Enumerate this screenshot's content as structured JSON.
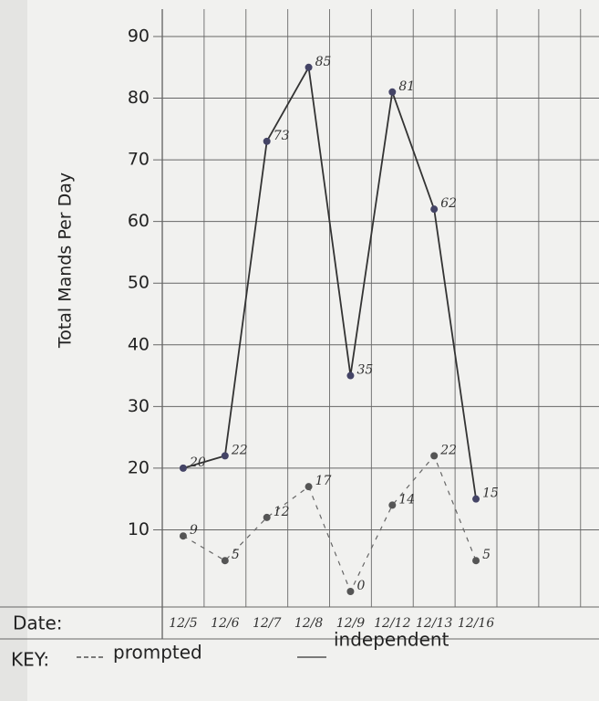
{
  "chart_data": {
    "type": "line",
    "y_label": "Total Mands Per Day",
    "x_label": "Date:",
    "legend_title": "KEY:",
    "categories": [
      "12/5",
      "12/6",
      "12/7",
      "12/8",
      "12/9",
      "12/12",
      "12/13",
      "12/16"
    ],
    "series": [
      {
        "name": "prompted",
        "color": "#666666",
        "dash": true,
        "values": [
          9,
          5,
          12,
          17,
          0,
          14,
          22,
          5
        ]
      },
      {
        "name": "independent",
        "color": "#333333",
        "dash": false,
        "values": [
          20,
          22,
          73,
          85,
          35,
          81,
          62,
          15
        ]
      }
    ],
    "ylim": [
      0,
      90
    ],
    "yticks": [
      10,
      20,
      30,
      40,
      50,
      60,
      70,
      80,
      90
    ],
    "grid": true
  }
}
